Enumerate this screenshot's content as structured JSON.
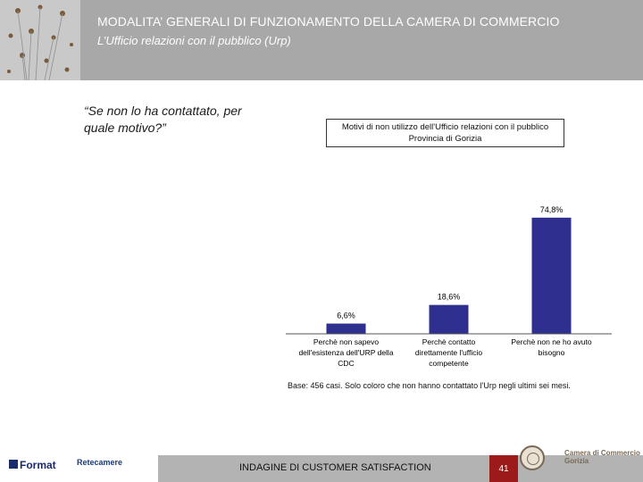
{
  "header": {
    "title": "MODALITA’ GENERALI DI FUNZIONAMENTO DELLA CAMERA DI COMMERCIO",
    "subtitle": "L’Ufficio relazioni con il pubblico (Urp)"
  },
  "question": "“Se non lo ha contattato, per quale motivo?”",
  "chart_data": {
    "type": "bar",
    "title_lines": [
      "Motivi di non utilizzo dell'Ufficio relazioni con il pubblico",
      "Provincia di Gorizia"
    ],
    "categories": [
      [
        "Perchè non sapevo",
        "dell'esistenza dell'URP della",
        "CDC"
      ],
      [
        "Perchè contatto",
        "direttamente l'ufficio",
        "competente"
      ],
      [
        "Perchè non ne ho avuto",
        "bisogno"
      ]
    ],
    "values": [
      6.6,
      18.6,
      74.8
    ],
    "value_labels": [
      "6,6%",
      "18,6%",
      "74,8%"
    ],
    "ylim": [
      0,
      100
    ],
    "bar_color": "#2e2f8f"
  },
  "base_note": "Base: 456 casi. Solo coloro che non hanno contattato l'Urp negli ultimi sei mesi.",
  "footer": {
    "survey": "INDAGINE DI CUSTOMER SATISFACTION",
    "page": "41",
    "logo_format": "Format",
    "logo_retecamere": "Retecamere",
    "logo_camera": [
      "Camera di Commercio",
      "Gorizia"
    ]
  }
}
